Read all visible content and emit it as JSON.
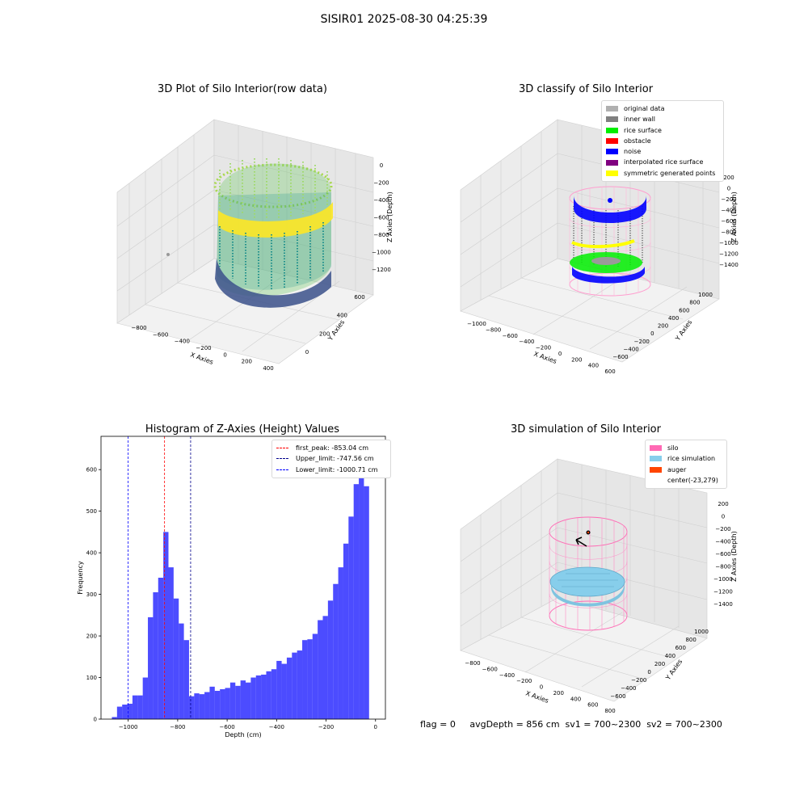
{
  "suptitle": "SISIR01 2025-08-30 04:25:39",
  "footer": "flag = 0     avgDepth = 856 cm  sv1 = 700~2300  sv2 = 700~2300",
  "panels": {
    "raw": {
      "title": "3D Plot of Silo Interior(row data)",
      "xlabel": "X Axies",
      "ylabel": "Y Axies",
      "zlabel": "Z Axies (Depth)",
      "xticks": [
        "−800",
        "−600",
        "−400",
        "−200",
        "0",
        "200",
        "400"
      ],
      "yticks": [
        "0",
        "200",
        "400",
        "600"
      ],
      "zticks": [
        "0",
        "−200",
        "−400",
        "−600",
        "−800",
        "−1000",
        "−1200"
      ]
    },
    "classify": {
      "title": "3D classify of Silo Interior",
      "xlabel": "X Axies",
      "ylabel": "Y Axies",
      "zlabel": "Z Axies (Depth)",
      "xticks": [
        "−1000",
        "−800",
        "−600",
        "−400",
        "−200",
        "0",
        "200",
        "400",
        "600"
      ],
      "yticks": [
        "−600",
        "−400",
        "−200",
        "0",
        "200",
        "400",
        "600",
        "800",
        "1000"
      ],
      "zticks": [
        "200",
        "0",
        "−200",
        "−400",
        "−600",
        "−800",
        "−1000",
        "−1200",
        "−1400"
      ],
      "legend": [
        {
          "label": "original data",
          "color": "#b0b0b0"
        },
        {
          "label": "inner wall",
          "color": "#808080"
        },
        {
          "label": "rice surface",
          "color": "#00ee00"
        },
        {
          "label": "obstacle",
          "color": "#ff0000"
        },
        {
          "label": "noise",
          "color": "#0000ff"
        },
        {
          "label": "interpolated rice surface",
          "color": "#800080"
        },
        {
          "label": "symmetric generated points",
          "color": "#ffff00"
        }
      ]
    },
    "simulation": {
      "title": "3D simulation of Silo Interior",
      "xlabel": "X Axies",
      "ylabel": "Y Axies",
      "zlabel": "Z Axies (Depth)",
      "xticks": [
        "−800",
        "−600",
        "−400",
        "−200",
        "0",
        "200",
        "400",
        "600",
        "800"
      ],
      "yticks": [
        "−600",
        "−400",
        "−200",
        "0",
        "200",
        "400",
        "600",
        "800",
        "1000"
      ],
      "zticks": [
        "200",
        "0",
        "−200",
        "−400",
        "−600",
        "−800",
        "−1000",
        "−1200",
        "−1400"
      ],
      "legend": [
        {
          "label": "silo",
          "color": "#ff69b4"
        },
        {
          "label": "rice simulation",
          "color": "#87ceeb"
        },
        {
          "label": "auger",
          "color": "#ff4500"
        },
        {
          "label": "center(-23,279)",
          "color": ""
        }
      ]
    }
  },
  "chart_data": [
    {
      "type": "bar",
      "title": "Histogram of Z-Axies (Height) Values",
      "xlabel": "Depth (cm)",
      "ylabel": "Frequency",
      "xlim": [
        -1110,
        40
      ],
      "ylim": [
        0,
        680
      ],
      "xticks": [
        -1000,
        -800,
        -600,
        -400,
        -200,
        0
      ],
      "yticks": [
        0,
        100,
        200,
        300,
        400,
        500,
        600
      ],
      "bar_color": "#0000ff",
      "bins": {
        "start": -1066,
        "width": 20.8,
        "values": [
          5,
          30,
          35,
          37,
          57,
          57,
          100,
          245,
          305,
          340,
          450,
          365,
          290,
          230,
          190,
          55,
          62,
          60,
          65,
          78,
          68,
          72,
          75,
          88,
          80,
          93,
          88,
          100,
          105,
          107,
          115,
          120,
          140,
          133,
          148,
          160,
          165,
          190,
          192,
          205,
          238,
          248,
          285,
          325,
          365,
          422,
          487,
          565,
          648,
          560
        ]
      },
      "lines": [
        {
          "label": "first_peak: -853.04 cm",
          "x": -853.04,
          "color": "#ff0000"
        },
        {
          "label": "Upper_limit: -747.56 cm",
          "x": -747.56,
          "color": "#00008b"
        },
        {
          "label": "Lower_limit: -1000.71 cm",
          "x": -1000.71,
          "color": "#0000ff"
        }
      ]
    }
  ]
}
